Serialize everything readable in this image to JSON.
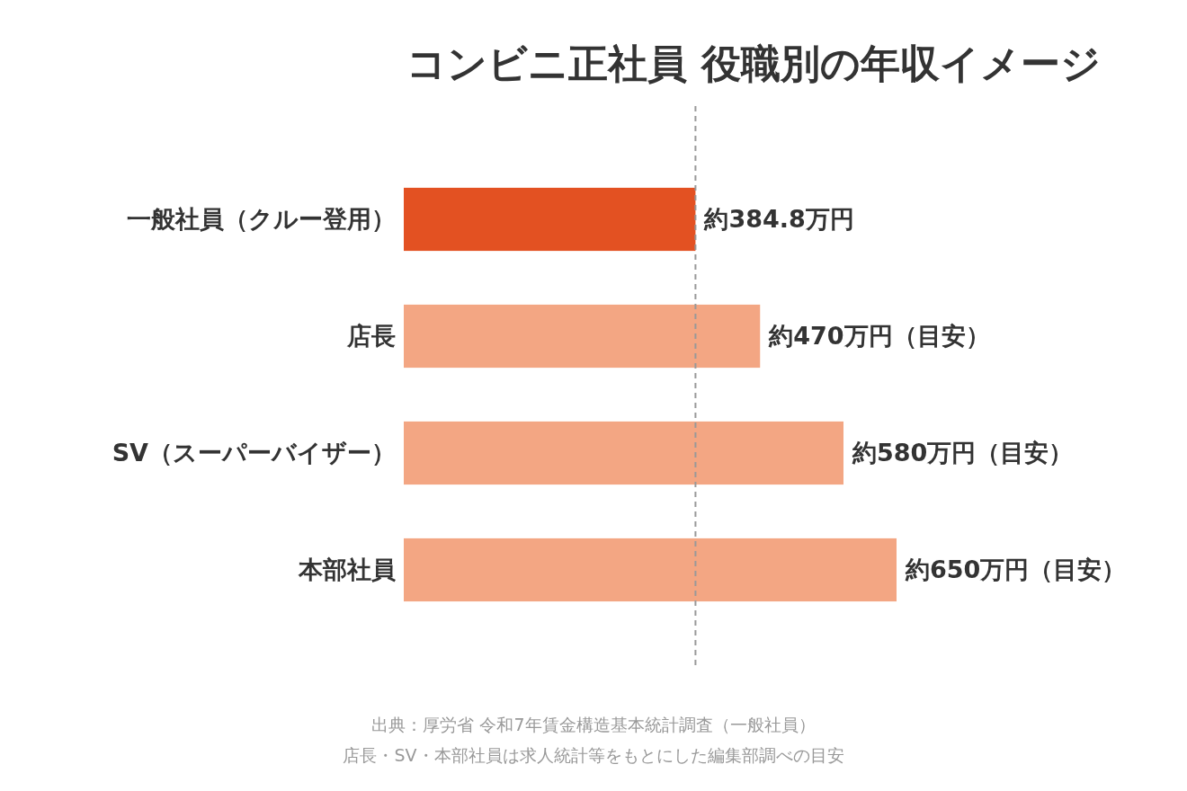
{
  "chart_data": {
    "type": "bar",
    "orientation": "horizontal",
    "title": "コンビニ正社員 役職別の年収イメージ",
    "categories": [
      "一般社員（クルー登用）",
      "店長",
      "SV（スーパーバイザー）",
      "本部社員"
    ],
    "values": [
      384.8,
      470,
      580,
      650
    ],
    "colors": [
      "#e35122",
      "#f3a683",
      "#f3a683",
      "#f3a683"
    ],
    "value_labels": [
      "約384.8万円",
      "約470万円（目安）",
      "約580万円（目安）",
      "約650万円（目安）"
    ],
    "tick_labels": "y",
    "ref_lines": [
      {
        "axis": "x",
        "value": 384.8,
        "color": "#999999",
        "line_style": "dashed"
      }
    ],
    "annotations": [
      "出典：厚労省 令和7年賃金構造基本統計調査（一般社員）",
      "店長・SV・本部社員は求人統計等をもとにした編集部調べの目安"
    ]
  }
}
